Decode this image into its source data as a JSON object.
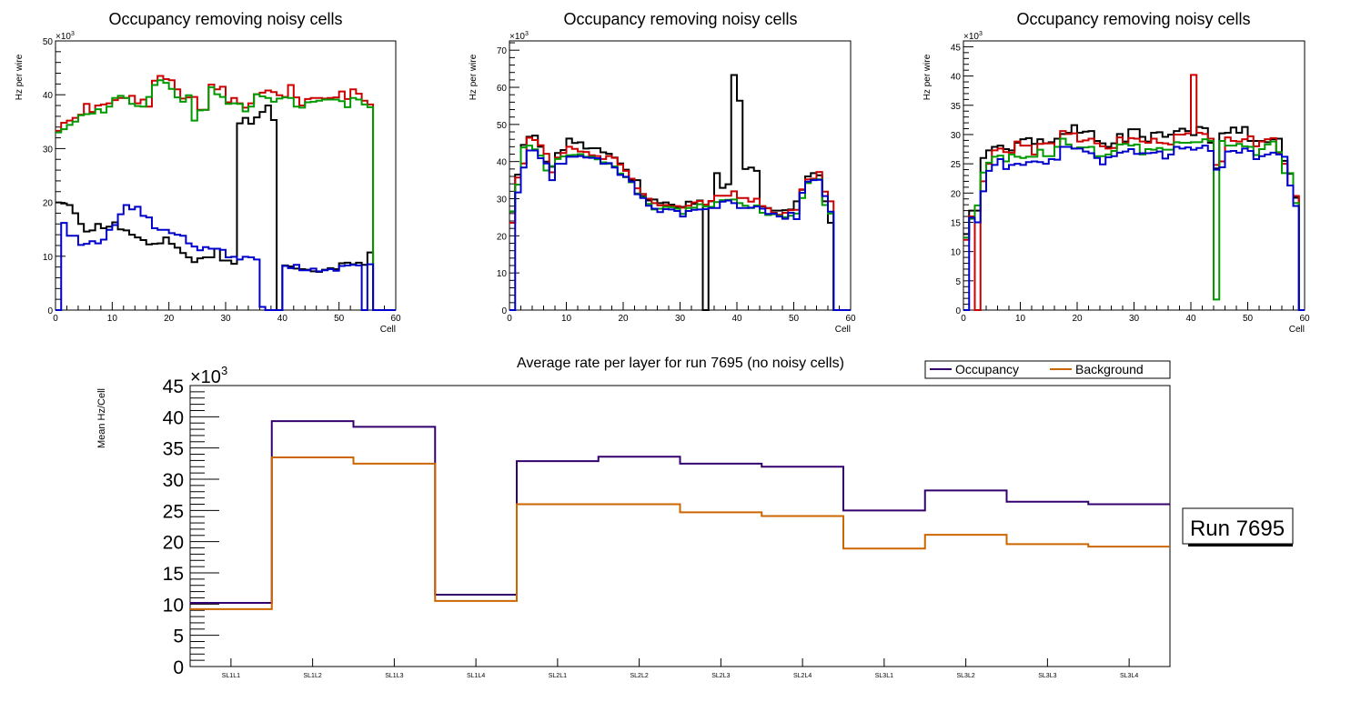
{
  "chart_data": [
    {
      "type": "line",
      "subtype": "step-histogram",
      "title": "Occupancy removing noisy cells",
      "xlabel": "Cell",
      "ylabel": "Hz per wire",
      "y_multiplier": "×10",
      "y_multiplier_exp": "3",
      "xlim": [
        0,
        60
      ],
      "ylim": [
        0,
        50
      ],
      "xticks": [
        0,
        10,
        20,
        30,
        40,
        50,
        60
      ],
      "yticks": [
        0,
        10,
        20,
        30,
        40,
        50
      ],
      "series": [
        {
          "name": "black",
          "color": "#000000",
          "values": [
            20,
            19.8,
            19.5,
            18,
            16,
            14.6,
            14.8,
            16,
            15.2,
            15.5,
            16.3,
            15,
            14.8,
            14,
            13.5,
            13,
            12.2,
            12.3,
            12.4,
            13.5,
            12.3,
            11.6,
            10.6,
            9.8,
            8.9,
            9.6,
            9.8,
            9.8,
            11.4,
            9.2,
            9.2,
            8.6,
            34.7,
            35.7,
            34.6,
            35.8,
            36.8,
            38,
            35.3,
            0,
            8.3,
            8.1,
            7.7,
            7.6,
            7.5,
            7.2,
            7.1,
            7.5,
            7.8,
            7.6,
            8.7,
            8.8,
            8.5,
            8.8,
            8.4,
            10.7,
            0,
            0,
            0,
            0
          ]
        },
        {
          "name": "red",
          "color": "#cc0000",
          "values": [
            33.3,
            34.8,
            35.2,
            35.7,
            36.3,
            38.3,
            36.8,
            38,
            38.2,
            38.4,
            39,
            39.4,
            39.4,
            39.8,
            38.4,
            39.1,
            37.8,
            42.6,
            43.5,
            42.9,
            42.7,
            41,
            39.3,
            39.5,
            39.6,
            37.2,
            37.2,
            41.9,
            41,
            41.5,
            38.6,
            39.4,
            38.4,
            37.6,
            38.4,
            40.1,
            40.4,
            40.8,
            40.5,
            39.9,
            39.6,
            41.8,
            39.5,
            38,
            39.2,
            39.4,
            39.4,
            39.3,
            39.4,
            39.5,
            40.6,
            39.2,
            41,
            40.2,
            38.9,
            38.2,
            0,
            0,
            0,
            0
          ]
        },
        {
          "name": "green",
          "color": "#009900",
          "values": [
            33,
            33.6,
            34.4,
            35,
            36.2,
            36.4,
            36.5,
            37.3,
            36.7,
            37.8,
            39.4,
            39.8,
            39.4,
            38.3,
            37.9,
            37.8,
            39.6,
            41.8,
            42.7,
            42.2,
            41.1,
            39.5,
            38.7,
            39.9,
            35.2,
            37.1,
            37.2,
            41.4,
            40.1,
            39.6,
            38.3,
            38.4,
            38.3,
            36.9,
            37.8,
            40.1,
            39.7,
            39.4,
            38.7,
            39.3,
            39.5,
            39.4,
            37.8,
            37.6,
            38.6,
            38.7,
            38.9,
            39.1,
            39.1,
            39.1,
            38.8,
            37.7,
            39.4,
            39.1,
            38.2,
            37.7,
            0,
            0,
            0,
            0
          ]
        },
        {
          "name": "blue",
          "color": "#0000cc",
          "values": [
            0,
            16.2,
            13.8,
            13.8,
            12.1,
            12.3,
            12.8,
            12.4,
            13.1,
            14.9,
            15.8,
            17.8,
            19.5,
            18.7,
            19.2,
            17.5,
            17.2,
            15.2,
            14.9,
            14.9,
            14.3,
            14,
            13.8,
            12.4,
            11.8,
            11.1,
            11.7,
            11.4,
            11.4,
            11.2,
            9.8,
            9.9,
            9.4,
            9.9,
            9.8,
            9.4,
            0.6,
            0,
            0,
            0,
            8.2,
            7.8,
            8.4,
            7.4,
            7.4,
            7.7,
            7.2,
            7.4,
            7.6,
            7.3,
            8.2,
            8.3,
            8.4,
            8.3,
            0,
            8.5,
            0,
            0,
            0,
            0
          ]
        }
      ]
    },
    {
      "type": "line",
      "subtype": "step-histogram",
      "title": "Occupancy removing noisy cells",
      "xlabel": "Cell",
      "ylabel": "Hz per wire",
      "y_multiplier": "×10",
      "y_multiplier_exp": "3",
      "xlim": [
        0,
        60
      ],
      "ylim": [
        0,
        72.5
      ],
      "xticks": [
        0,
        10,
        20,
        30,
        40,
        50,
        60
      ],
      "yticks": [
        0,
        10,
        20,
        30,
        40,
        50,
        60,
        70
      ],
      "series": [
        {
          "name": "black",
          "color": "#000000",
          "values": [
            26.5,
            36.5,
            44.5,
            46.7,
            47,
            44,
            40,
            38.6,
            42.3,
            43.1,
            46.2,
            45,
            45.2,
            43.5,
            43.6,
            43.6,
            42.5,
            42.1,
            41.1,
            39.5,
            37.8,
            35,
            35,
            30.7,
            29.5,
            29.8,
            28.8,
            29,
            28.4,
            27.8,
            27.8,
            29.2,
            28.6,
            29.5,
            0,
            29.3,
            36.9,
            32.9,
            33.9,
            63.3,
            56.4,
            38,
            38.4,
            37.5,
            27.9,
            27.5,
            26.8,
            26.8,
            26.9,
            27.1,
            29.3,
            32.4,
            36,
            36.9,
            36.3,
            29.3,
            23.5,
            0,
            0,
            0
          ]
        },
        {
          "name": "red",
          "color": "#cc0000",
          "values": [
            23.5,
            35.7,
            39.5,
            46.4,
            45.8,
            44.4,
            42.1,
            37.1,
            41.1,
            42.3,
            44,
            43.4,
            42.7,
            42.6,
            41.7,
            41.5,
            40.7,
            41.5,
            41,
            39.2,
            37.5,
            35.4,
            32.8,
            31.3,
            30,
            28.8,
            28.2,
            28.3,
            28,
            28,
            27.6,
            28.1,
            29,
            29.4,
            28.4,
            29.4,
            30.8,
            30.8,
            30.8,
            32,
            30.2,
            30.2,
            29.2,
            30,
            28,
            27.4,
            26.2,
            25.7,
            26.2,
            26.9,
            27,
            32.5,
            35.2,
            35.4,
            37.2,
            31.9,
            29.3,
            0,
            0,
            0
          ]
        },
        {
          "name": "green",
          "color": "#009900",
          "values": [
            26.6,
            33.8,
            43.8,
            44.3,
            43.3,
            41.6,
            37.6,
            38.8,
            40.7,
            41.4,
            41.7,
            41.8,
            42,
            41.3,
            41.3,
            40.6,
            39.8,
            39.4,
            38.7,
            36.8,
            35.8,
            34.4,
            31.4,
            30.4,
            28.6,
            27.1,
            27.3,
            27.8,
            27.7,
            27.3,
            25.9,
            27.5,
            27.6,
            28.5,
            27.9,
            27.8,
            29.1,
            29.6,
            29.7,
            29.8,
            28.8,
            28.1,
            27.5,
            28.2,
            26.2,
            25.6,
            25.8,
            25.4,
            25,
            25.4,
            26,
            30.2,
            34.2,
            35.1,
            35.2,
            28.3,
            26,
            0,
            0,
            0
          ]
        },
        {
          "name": "blue",
          "color": "#0000cc",
          "values": [
            0,
            31.7,
            38.4,
            43,
            43,
            40.9,
            39.5,
            35,
            39.4,
            39.4,
            41.3,
            41.3,
            41.5,
            41.1,
            41,
            40.9,
            39.4,
            39.6,
            38.4,
            36.4,
            35.9,
            34.6,
            31.2,
            30.2,
            28.1,
            27.3,
            26.4,
            27.2,
            27.1,
            26.7,
            25.2,
            26.7,
            27,
            27.1,
            27.2,
            27.5,
            27.5,
            29.2,
            29.5,
            28.8,
            27.5,
            27.5,
            27.6,
            27.9,
            27.3,
            25.9,
            26,
            25.2,
            24.6,
            26.2,
            24.5,
            31.6,
            34.6,
            35,
            35.1,
            30.7,
            26.5,
            0,
            0,
            0
          ]
        }
      ]
    },
    {
      "type": "line",
      "subtype": "step-histogram",
      "title": "Occupancy removing noisy cells",
      "xlabel": "Cell",
      "ylabel": "Hz per wire",
      "y_multiplier": "×10",
      "y_multiplier_exp": "3",
      "xlim": [
        0,
        60
      ],
      "ylim": [
        0,
        46
      ],
      "xticks": [
        0,
        10,
        20,
        30,
        40,
        50,
        60
      ],
      "yticks": [
        0,
        5,
        10,
        15,
        20,
        25,
        30,
        35,
        40,
        45
      ],
      "series": [
        {
          "name": "black",
          "color": "#000000",
          "values": [
            13,
            17,
            17,
            26,
            27.3,
            27.9,
            28.1,
            27.5,
            27.3,
            28.6,
            29.2,
            29.4,
            28.4,
            29.2,
            28.5,
            28.7,
            29.3,
            30.1,
            30.3,
            31.6,
            30.3,
            30.5,
            30.6,
            28.9,
            28.5,
            27.9,
            28.5,
            30.1,
            28.8,
            30.9,
            30.9,
            29.6,
            28.8,
            30.3,
            30.4,
            29.6,
            30,
            30.6,
            31,
            30.6,
            29.9,
            31.3,
            31.1,
            28.6,
            24.2,
            30.2,
            30.3,
            31.2,
            30.3,
            31.3,
            28.9,
            28.9,
            28.9,
            28.7,
            29.2,
            29.3,
            25.5,
            23.3,
            19.2,
            0
          ]
        },
        {
          "name": "red",
          "color": "#cc0000",
          "values": [
            12,
            16,
            0,
            22,
            25,
            27.3,
            27.6,
            27,
            26.9,
            28.8,
            28.1,
            28.1,
            26.6,
            28.4,
            28.5,
            28.5,
            27.9,
            30.6,
            30.1,
            30.2,
            28.8,
            29,
            29.3,
            28.5,
            28,
            27.6,
            27.7,
            29.5,
            28.5,
            29.4,
            29.3,
            28.8,
            28.6,
            29.3,
            28.6,
            28.5,
            28.3,
            30,
            30,
            30.2,
            40.2,
            30.3,
            30.1,
            29.3,
            24.8,
            25.4,
            29.5,
            28.9,
            28.8,
            29.2,
            29.7,
            28,
            28.8,
            29.2,
            29.4,
            26.8,
            25,
            21.3,
            19.5,
            0
          ]
        },
        {
          "name": "green",
          "color": "#009900",
          "values": [
            12.4,
            15.6,
            17.9,
            23.5,
            25.2,
            26.2,
            26.4,
            25.4,
            26.6,
            26.2,
            26,
            26.2,
            26.2,
            27.4,
            26.3,
            26.3,
            27.9,
            29.3,
            28.3,
            27.6,
            27.8,
            27.8,
            27.9,
            26.3,
            26.3,
            26.6,
            27.2,
            28.3,
            28.4,
            28.1,
            28.3,
            26.6,
            27.5,
            27.4,
            27.7,
            27.4,
            27.4,
            28.7,
            28.6,
            28.6,
            28.7,
            28.7,
            29.2,
            28.9,
            1.8,
            28.9,
            28.1,
            28.1,
            28.4,
            28,
            27.9,
            26.5,
            27.5,
            28.3,
            28.8,
            27,
            23.4,
            23.4,
            18.3,
            0
          ]
        },
        {
          "name": "blue",
          "color": "#0000cc",
          "values": [
            0,
            15.8,
            15,
            20.3,
            23.8,
            24.8,
            25.8,
            24.1,
            24.8,
            25,
            24.8,
            25.3,
            25.4,
            25.3,
            25,
            25.8,
            25.7,
            27.9,
            27.9,
            27.6,
            27.6,
            27.1,
            26.8,
            26,
            24.9,
            26.1,
            26.3,
            26.9,
            27.1,
            27.5,
            26.7,
            26.8,
            26.8,
            26.9,
            27.1,
            25.9,
            26.6,
            27.9,
            27.6,
            27.8,
            27.4,
            27.7,
            28.1,
            27.2,
            24,
            24.4,
            27.1,
            27.2,
            26.9,
            27.6,
            27.2,
            25.8,
            26.3,
            26.6,
            26.9,
            26.6,
            26.2,
            21.3,
            17.8,
            0
          ]
        }
      ]
    },
    {
      "type": "line",
      "subtype": "step-histogram",
      "title": "Average rate per layer for run 7695 (no noisy cells)",
      "xlabel": "",
      "ylabel": "Mean Hz/Cell",
      "y_multiplier": "×10",
      "y_multiplier_exp": "3",
      "categories": [
        "SL1L1",
        "SL1L2",
        "SL1L3",
        "SL1L4",
        "SL2L1",
        "SL2L2",
        "SL2L3",
        "SL2L4",
        "SL3L1",
        "SL3L2",
        "SL3L3",
        "SL3L4"
      ],
      "ylim": [
        0,
        45
      ],
      "yticks": [
        0,
        5,
        10,
        15,
        20,
        25,
        30,
        35,
        40,
        45
      ],
      "legend_position": "top-right",
      "series": [
        {
          "name": "Occupancy",
          "color": "#33006e",
          "values": [
            10.2,
            39.3,
            38.4,
            11.5,
            32.9,
            33.6,
            32.5,
            32.0,
            25.0,
            28.2,
            26.4,
            26.0
          ]
        },
        {
          "name": "Background",
          "color": "#cc6600",
          "values": [
            9.2,
            33.5,
            32.5,
            10.5,
            26.0,
            26.0,
            24.7,
            24.1,
            18.9,
            21.1,
            19.6,
            19.2
          ]
        }
      ],
      "annotation": "Run 7695"
    }
  ]
}
